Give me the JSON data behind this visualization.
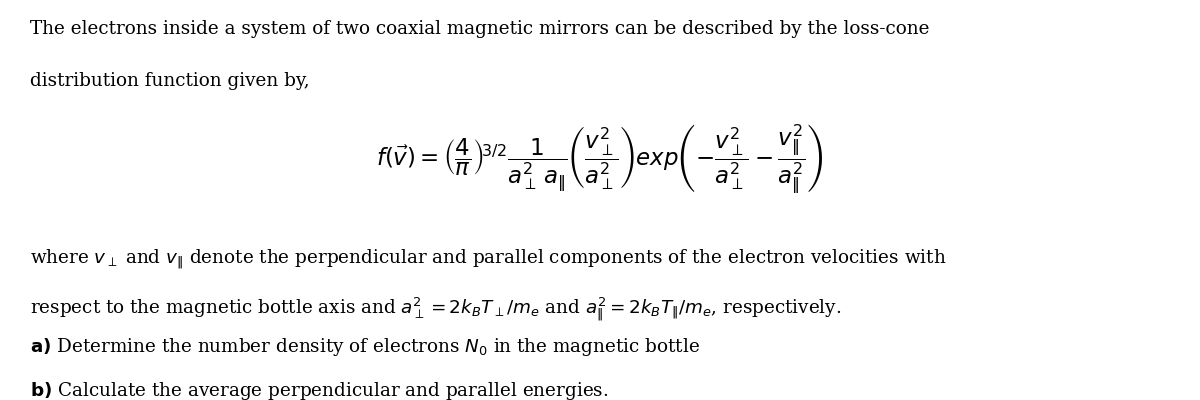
{
  "figsize": [
    12.0,
    4.0
  ],
  "dpi": 100,
  "background_color": "#ffffff",
  "text_color": "#000000",
  "para1_line1": "The electrons inside a system of two coaxial magnetic mirrors can be described by the loss-cone",
  "para1_line2": "distribution function given by,",
  "formula": "$f(\\vec{v}) = \\left(\\dfrac{4}{\\pi}\\right)^{\\!3/2} \\dfrac{1}{a_{\\perp}^{2}\\,a_{\\|}} \\left(\\dfrac{v_{\\perp}^{2}}{a_{\\perp}^{2}}\\right) exp\\left(-\\dfrac{v_{\\perp}^{2}}{a_{\\perp}^{2}} - \\dfrac{v_{\\|}^{2}}{a_{\\|}^{2}}\\right)$",
  "para2_line1": "where $v_{\\perp}$ and $v_{\\|}$ denote the perpendicular and parallel components of the electron velocities with",
  "para2_line2": "respect to the magnetic bottle axis and $a_{\\perp}^{2} = 2k_{B}T_{\\perp}/m_{e}$ and $a_{\\|}^{2} = 2k_{B}T_{\\|}/m_{e}$, respectively.",
  "item_a": "$\\mathbf{a)}$ Determine the number density of electrons $N_0$ in the magnetic bottle",
  "item_b": "$\\mathbf{b)}$ Calculate the average perpendicular and parallel energies.",
  "fontsize_para": 13.2,
  "fontsize_formula": 16.5,
  "fontsize_items": 13.2
}
